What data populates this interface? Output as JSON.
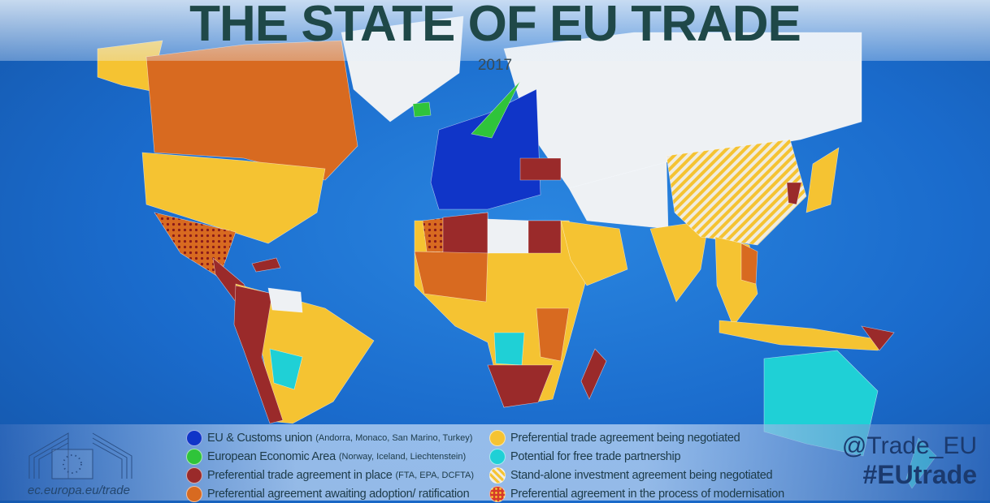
{
  "header": {
    "title": "THE STATE OF EU TRADE",
    "year": "2017"
  },
  "legend": [
    {
      "label": "EU & Customs union",
      "note": "(Andorra, Monaco, San Marino, Turkey)",
      "color": "#1035c8",
      "pattern": "solid"
    },
    {
      "label": "European Economic Area",
      "note": "(Norway, Iceland, Liechtenstein)",
      "color": "#2fc43a",
      "pattern": "solid"
    },
    {
      "label": "Preferential trade agreement in place",
      "note": "(FTA, EPA, DCFTA)",
      "color": "#9a2a2a",
      "pattern": "solid"
    },
    {
      "label": "Preferential agreement awaiting adoption/ ratification",
      "note": "",
      "color": "#d86a20",
      "pattern": "solid"
    },
    {
      "label": "Preferential trade agreement being negotiated",
      "note": "",
      "color": "#f5c332",
      "pattern": "solid"
    },
    {
      "label": "Potential for free trade partnership",
      "note": "",
      "color": "#1fd0d6",
      "pattern": "solid"
    },
    {
      "label": "Stand-alone investment agreement being negotiated",
      "note": "",
      "color": "#f5c332",
      "pattern": "hatched"
    },
    {
      "label": "Preferential agreement in the process of modernisation",
      "note": "",
      "color": "#d63a2a",
      "pattern": "dotted"
    }
  ],
  "footer": {
    "website": "ec.europa.eu/trade",
    "twitter": "@Trade_EU",
    "hashtag": "#EUtrade"
  },
  "colors": {
    "ocean": "#1a6bcc",
    "no_agreement": "#eef1f4",
    "title": "#1f4848"
  }
}
